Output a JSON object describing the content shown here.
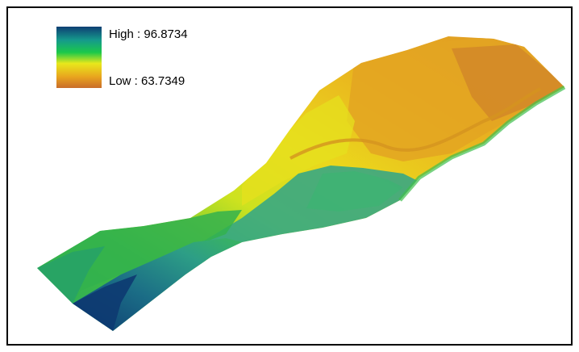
{
  "legend": {
    "high_label": "High : 96.8734",
    "low_label": "Low : 63.7349",
    "high_value": 96.8734,
    "low_value": 63.7349,
    "ramp_colors": [
      "#0e3e73",
      "#159a8c",
      "#1bc94a",
      "#e8e81b",
      "#e8a41e",
      "#c96d2a"
    ]
  },
  "map": {
    "colors": {
      "deep_blue": "#0f3d74",
      "teal": "#2b9c8a",
      "green": "#35b94a",
      "light_green": "#7fcf3b",
      "yellow": "#e4e21b",
      "light_orange": "#e9c11f",
      "orange": "#e39b24",
      "brown_orange": "#c9782e"
    }
  }
}
